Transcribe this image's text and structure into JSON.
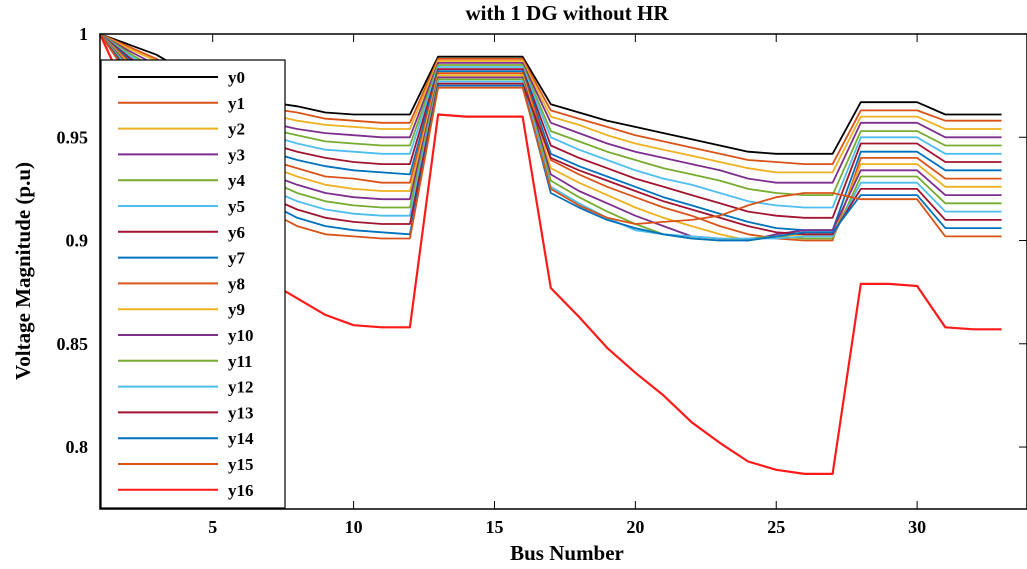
{
  "chart_data": {
    "type": "line",
    "title": "with 1 DG without HR",
    "xlabel": "Bus Number",
    "ylabel": "Voltage Magnitude (p.u)",
    "xlim": [
      1,
      33.9
    ],
    "ylim": [
      0.77,
      1.0
    ],
    "xticks": [
      5,
      10,
      15,
      20,
      25,
      30
    ],
    "yticks": [
      0.8,
      0.85,
      0.9,
      0.95,
      1
    ],
    "ytick_labels": [
      "0.8",
      "0.85",
      "0.9",
      "0.95",
      "1"
    ],
    "legend_position": "upper-left",
    "x": [
      1,
      2,
      3,
      4,
      5,
      6,
      7,
      8,
      9,
      10,
      11,
      12,
      13,
      14,
      15,
      16,
      17,
      18,
      19,
      20,
      21,
      22,
      23,
      24,
      25,
      26,
      27,
      28,
      29,
      30,
      31,
      32,
      33
    ],
    "series": [
      {
        "name": "y0",
        "color": "#000000",
        "values": [
          1.0,
          0.995,
          0.99,
          0.982,
          0.976,
          0.973,
          0.967,
          0.965,
          0.962,
          0.961,
          0.961,
          0.961,
          0.989,
          0.989,
          0.989,
          0.989,
          0.966,
          0.962,
          0.958,
          0.955,
          0.952,
          0.949,
          0.946,
          0.943,
          0.942,
          0.942,
          0.942,
          0.967,
          0.967,
          0.967,
          0.961,
          0.961,
          0.961
        ]
      },
      {
        "name": "y1",
        "color": "#d95319",
        "values": [
          1.0,
          0.994,
          0.988,
          0.98,
          0.973,
          0.97,
          0.964,
          0.962,
          0.959,
          0.958,
          0.957,
          0.957,
          0.988,
          0.988,
          0.988,
          0.988,
          0.963,
          0.959,
          0.955,
          0.951,
          0.948,
          0.945,
          0.942,
          0.939,
          0.938,
          0.937,
          0.937,
          0.963,
          0.963,
          0.963,
          0.958,
          0.958,
          0.958
        ]
      },
      {
        "name": "y2",
        "color": "#edb120",
        "values": [
          1.0,
          0.993,
          0.987,
          0.978,
          0.971,
          0.967,
          0.961,
          0.958,
          0.956,
          0.955,
          0.954,
          0.954,
          0.987,
          0.987,
          0.987,
          0.987,
          0.96,
          0.956,
          0.951,
          0.947,
          0.944,
          0.941,
          0.938,
          0.935,
          0.933,
          0.933,
          0.933,
          0.96,
          0.96,
          0.96,
          0.954,
          0.954,
          0.954
        ]
      },
      {
        "name": "y3",
        "color": "#7e2f8e",
        "values": [
          1.0,
          0.992,
          0.985,
          0.976,
          0.968,
          0.964,
          0.957,
          0.954,
          0.952,
          0.951,
          0.95,
          0.95,
          0.986,
          0.986,
          0.986,
          0.986,
          0.957,
          0.952,
          0.947,
          0.943,
          0.94,
          0.937,
          0.934,
          0.93,
          0.928,
          0.928,
          0.928,
          0.957,
          0.957,
          0.957,
          0.95,
          0.95,
          0.95
        ]
      },
      {
        "name": "y4",
        "color": "#77ac30",
        "values": [
          1.0,
          0.991,
          0.983,
          0.974,
          0.966,
          0.961,
          0.954,
          0.951,
          0.948,
          0.947,
          0.946,
          0.946,
          0.985,
          0.985,
          0.985,
          0.985,
          0.953,
          0.948,
          0.943,
          0.939,
          0.935,
          0.932,
          0.929,
          0.925,
          0.923,
          0.922,
          0.922,
          0.953,
          0.953,
          0.953,
          0.946,
          0.946,
          0.946
        ]
      },
      {
        "name": "y5",
        "color": "#4dbeee",
        "values": [
          1.0,
          0.99,
          0.982,
          0.972,
          0.963,
          0.958,
          0.951,
          0.947,
          0.944,
          0.943,
          0.942,
          0.942,
          0.984,
          0.984,
          0.984,
          0.984,
          0.95,
          0.944,
          0.939,
          0.934,
          0.93,
          0.927,
          0.923,
          0.919,
          0.917,
          0.916,
          0.916,
          0.95,
          0.95,
          0.95,
          0.942,
          0.942,
          0.942
        ]
      },
      {
        "name": "y6",
        "color": "#a2142f",
        "values": [
          1.0,
          0.989,
          0.98,
          0.97,
          0.961,
          0.955,
          0.947,
          0.943,
          0.94,
          0.938,
          0.937,
          0.937,
          0.983,
          0.983,
          0.983,
          0.983,
          0.946,
          0.94,
          0.935,
          0.93,
          0.926,
          0.922,
          0.918,
          0.914,
          0.912,
          0.911,
          0.911,
          0.947,
          0.947,
          0.947,
          0.938,
          0.938,
          0.938
        ]
      },
      {
        "name": "y7",
        "color": "#0072bd",
        "values": [
          1.0,
          0.988,
          0.978,
          0.967,
          0.958,
          0.952,
          0.943,
          0.939,
          0.936,
          0.934,
          0.933,
          0.932,
          0.982,
          0.982,
          0.982,
          0.982,
          0.942,
          0.936,
          0.931,
          0.926,
          0.921,
          0.917,
          0.913,
          0.909,
          0.906,
          0.905,
          0.905,
          0.943,
          0.943,
          0.943,
          0.934,
          0.934,
          0.934
        ]
      },
      {
        "name": "y8",
        "color": "#d95319",
        "values": [
          1.0,
          0.987,
          0.977,
          0.965,
          0.955,
          0.948,
          0.939,
          0.935,
          0.931,
          0.93,
          0.928,
          0.928,
          0.981,
          0.981,
          0.981,
          0.981,
          0.939,
          0.932,
          0.926,
          0.921,
          0.916,
          0.912,
          0.907,
          0.903,
          0.901,
          0.9,
          0.9,
          0.94,
          0.94,
          0.94,
          0.93,
          0.93,
          0.93
        ]
      },
      {
        "name": "y9",
        "color": "#edb120",
        "values": [
          1.0,
          0.986,
          0.975,
          0.963,
          0.952,
          0.945,
          0.936,
          0.931,
          0.927,
          0.925,
          0.924,
          0.924,
          0.98,
          0.98,
          0.98,
          0.98,
          0.935,
          0.928,
          0.922,
          0.916,
          0.911,
          0.907,
          0.903,
          0.9,
          0.902,
          0.903,
          0.903,
          0.937,
          0.937,
          0.937,
          0.926,
          0.926,
          0.926
        ]
      },
      {
        "name": "y10",
        "color": "#7e2f8e",
        "values": [
          1.0,
          0.985,
          0.973,
          0.96,
          0.949,
          0.942,
          0.932,
          0.927,
          0.923,
          0.921,
          0.92,
          0.92,
          0.979,
          0.979,
          0.979,
          0.979,
          0.932,
          0.924,
          0.918,
          0.912,
          0.907,
          0.902,
          0.901,
          0.9,
          0.903,
          0.905,
          0.905,
          0.934,
          0.934,
          0.934,
          0.922,
          0.922,
          0.922
        ]
      },
      {
        "name": "y11",
        "color": "#77ac30",
        "values": [
          1.0,
          0.984,
          0.972,
          0.958,
          0.947,
          0.939,
          0.929,
          0.923,
          0.919,
          0.917,
          0.916,
          0.916,
          0.978,
          0.978,
          0.978,
          0.978,
          0.929,
          0.921,
          0.914,
          0.908,
          0.903,
          0.901,
          0.9,
          0.901,
          0.902,
          0.901,
          0.901,
          0.931,
          0.931,
          0.931,
          0.918,
          0.918,
          0.918
        ]
      },
      {
        "name": "y12",
        "color": "#4dbeee",
        "values": [
          1.0,
          0.983,
          0.97,
          0.956,
          0.944,
          0.936,
          0.925,
          0.919,
          0.915,
          0.913,
          0.912,
          0.912,
          0.977,
          0.977,
          0.977,
          0.977,
          0.926,
          0.918,
          0.911,
          0.905,
          0.903,
          0.902,
          0.901,
          0.901,
          0.901,
          0.902,
          0.902,
          0.928,
          0.928,
          0.928,
          0.914,
          0.914,
          0.914
        ]
      },
      {
        "name": "y13",
        "color": "#a2142f",
        "values": [
          1.0,
          0.982,
          0.968,
          0.954,
          0.941,
          0.932,
          0.921,
          0.915,
          0.911,
          0.909,
          0.908,
          0.908,
          0.976,
          0.976,
          0.976,
          0.976,
          0.94,
          0.934,
          0.929,
          0.924,
          0.919,
          0.915,
          0.911,
          0.907,
          0.904,
          0.903,
          0.903,
          0.925,
          0.925,
          0.925,
          0.91,
          0.91,
          0.91
        ]
      },
      {
        "name": "y14",
        "color": "#0072bd",
        "values": [
          1.0,
          0.981,
          0.967,
          0.951,
          0.938,
          0.929,
          0.918,
          0.911,
          0.907,
          0.905,
          0.904,
          0.903,
          0.975,
          0.975,
          0.975,
          0.975,
          0.923,
          0.916,
          0.91,
          0.906,
          0.903,
          0.901,
          0.9,
          0.9,
          0.902,
          0.904,
          0.904,
          0.922,
          0.922,
          0.922,
          0.906,
          0.906,
          0.906
        ]
      },
      {
        "name": "y15",
        "color": "#d95319",
        "values": [
          1.0,
          0.98,
          0.965,
          0.949,
          0.936,
          0.926,
          0.914,
          0.907,
          0.903,
          0.902,
          0.901,
          0.901,
          0.974,
          0.974,
          0.974,
          0.974,
          0.925,
          0.917,
          0.911,
          0.908,
          0.909,
          0.91,
          0.912,
          0.917,
          0.921,
          0.923,
          0.923,
          0.92,
          0.92,
          0.92,
          0.902,
          0.902,
          0.902
        ]
      },
      {
        "name": "y16",
        "color": "#ff1a1a",
        "values": [
          1.0,
          0.97,
          0.95,
          0.93,
          0.912,
          0.897,
          0.88,
          0.872,
          0.864,
          0.859,
          0.858,
          0.858,
          0.961,
          0.96,
          0.96,
          0.96,
          0.877,
          0.863,
          0.848,
          0.836,
          0.825,
          0.812,
          0.802,
          0.793,
          0.789,
          0.787,
          0.787,
          0.879,
          0.879,
          0.878,
          0.858,
          0.857,
          0.857
        ]
      }
    ]
  }
}
